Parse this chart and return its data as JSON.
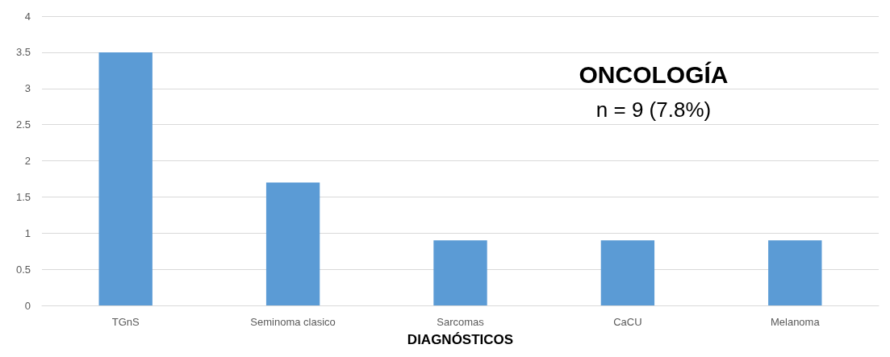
{
  "chart_data": {
    "type": "bar",
    "title": "ONCOLOGÍA",
    "subtitle": "n = 9 (7.8%)",
    "xlabel": "DIAGNÓSTICOS",
    "categories": [
      "TGnS",
      "Seminoma clasico",
      "Sarcomas",
      "CaCU",
      "Melanoma"
    ],
    "values": [
      3.5,
      1.7,
      0.9,
      0.9,
      0.9
    ],
    "color": "#5b9bd5",
    "ylim": [
      0,
      4
    ],
    "yticks": [
      0,
      0.5,
      1,
      1.5,
      2,
      2.5,
      3,
      3.5,
      4
    ],
    "grid": "y"
  }
}
